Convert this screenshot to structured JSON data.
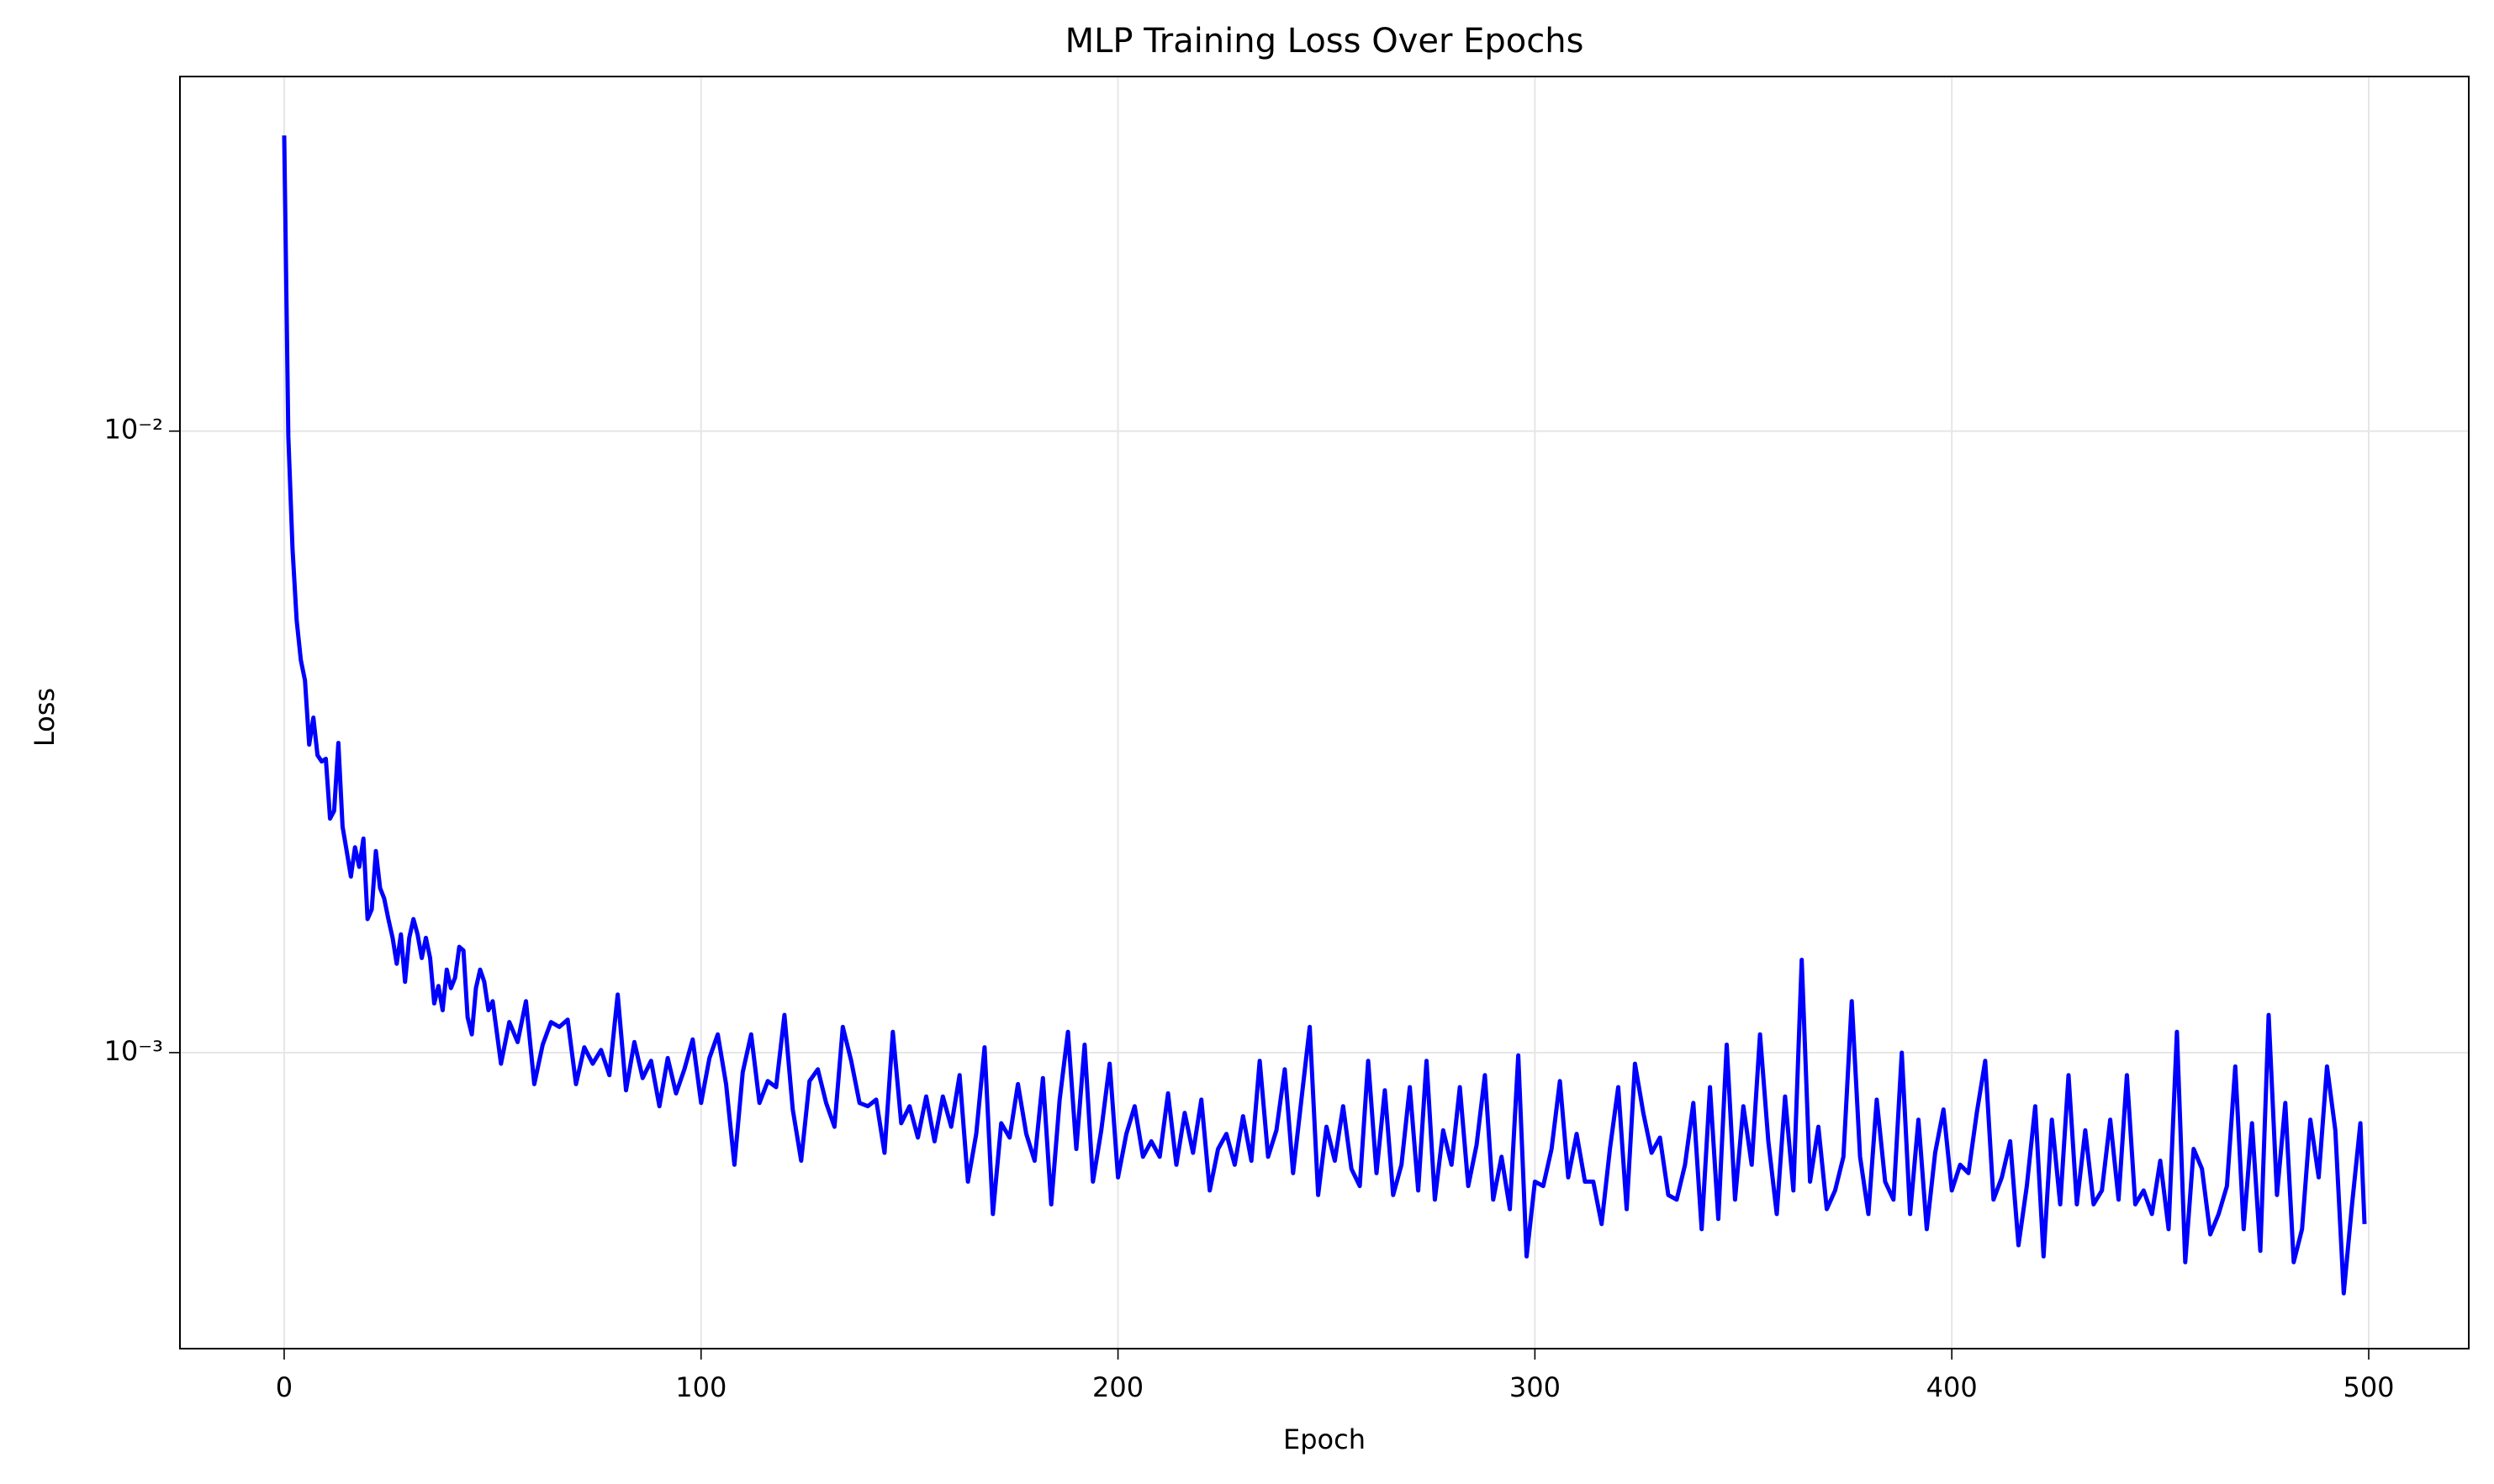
{
  "chart_data": {
    "type": "line",
    "title": "MLP Training Loss Over Epochs",
    "x_label": "Epoch",
    "y_label": "Loss",
    "color": "#0000ff",
    "grid": true,
    "y_scale": "log",
    "xlim": [
      -25,
      524
    ],
    "xticks": [
      0,
      100,
      200,
      300,
      400,
      500
    ],
    "ylim": [
      0.000334,
      0.0372
    ],
    "yticks": [
      {
        "value": 0.001,
        "label": "10⁻³"
      },
      {
        "value": 0.01,
        "label": "10⁻²"
      }
    ],
    "x": [
      0,
      1,
      2,
      3,
      4,
      5,
      6,
      7,
      8,
      9,
      10,
      11,
      12,
      13,
      14,
      15,
      16,
      17,
      18,
      19,
      20,
      21,
      22,
      23,
      24,
      25,
      26,
      27,
      28,
      29,
      30,
      31,
      32,
      33,
      34,
      35,
      36,
      37,
      38,
      39,
      40,
      41,
      42,
      43,
      44,
      45,
      46,
      47,
      48,
      49,
      50,
      52,
      54,
      56,
      58,
      60,
      62,
      64,
      66,
      68,
      70,
      72,
      74,
      76,
      78,
      80,
      82,
      84,
      86,
      88,
      90,
      92,
      94,
      96,
      98,
      100,
      102,
      104,
      106,
      108,
      110,
      112,
      114,
      116,
      118,
      120,
      122,
      124,
      126,
      128,
      130,
      132,
      134,
      136,
      138,
      140,
      142,
      144,
      146,
      148,
      150,
      152,
      154,
      156,
      158,
      160,
      162,
      164,
      166,
      168,
      170,
      172,
      174,
      176,
      178,
      180,
      182,
      184,
      186,
      188,
      190,
      192,
      194,
      196,
      198,
      200,
      202,
      204,
      206,
      208,
      210,
      212,
      214,
      216,
      218,
      220,
      222,
      224,
      226,
      228,
      230,
      232,
      234,
      236,
      238,
      240,
      242,
      244,
      246,
      248,
      250,
      252,
      254,
      256,
      258,
      260,
      262,
      264,
      266,
      268,
      270,
      272,
      274,
      276,
      278,
      280,
      282,
      284,
      286,
      288,
      290,
      292,
      294,
      296,
      298,
      300,
      302,
      304,
      306,
      308,
      310,
      312,
      314,
      316,
      318,
      320,
      322,
      324,
      326,
      328,
      330,
      332,
      334,
      336,
      338,
      340,
      342,
      344,
      346,
      348,
      350,
      352,
      354,
      356,
      358,
      360,
      362,
      364,
      366,
      368,
      370,
      372,
      374,
      376,
      378,
      380,
      382,
      384,
      386,
      388,
      390,
      392,
      394,
      396,
      398,
      400,
      402,
      404,
      406,
      408,
      410,
      412,
      414,
      416,
      418,
      420,
      422,
      424,
      426,
      428,
      430,
      432,
      434,
      436,
      438,
      440,
      442,
      444,
      446,
      448,
      450,
      452,
      454,
      456,
      458,
      460,
      462,
      464,
      466,
      468,
      470,
      472,
      474,
      476,
      478,
      480,
      482,
      484,
      486,
      488,
      490,
      492,
      494,
      496,
      498,
      499
    ],
    "values": [
      0.0299,
      0.0098,
      0.00646,
      0.00496,
      0.00428,
      0.00397,
      0.00313,
      0.00346,
      0.00301,
      0.00294,
      0.00297,
      0.00238,
      0.00245,
      0.00315,
      0.00231,
      0.00211,
      0.00192,
      0.00214,
      0.00199,
      0.00221,
      0.00164,
      0.0017,
      0.00211,
      0.00184,
      0.00177,
      0.00164,
      0.00153,
      0.00139,
      0.00155,
      0.0013,
      0.00153,
      0.00164,
      0.00155,
      0.00142,
      0.00153,
      0.00142,
      0.0012,
      0.00128,
      0.00117,
      0.00136,
      0.00127,
      0.00132,
      0.00148,
      0.00146,
      0.00114,
      0.00107,
      0.00127,
      0.00136,
      0.0013,
      0.00117,
      0.00121,
      0.00096,
      0.00112,
      0.00104,
      0.00121,
      0.00089,
      0.00103,
      0.00112,
      0.0011,
      0.00113,
      0.00089,
      0.00102,
      0.00096,
      0.00101,
      0.00092,
      0.00124,
      0.00087,
      0.00104,
      0.00091,
      0.00097,
      0.00082,
      0.00098,
      0.00086,
      0.00094,
      0.00105,
      0.00083,
      0.00098,
      0.00107,
      0.00089,
      0.00066,
      0.00093,
      0.00107,
      0.00083,
      0.0009,
      0.00088,
      0.00115,
      0.00081,
      0.00067,
      0.0009,
      0.00094,
      0.00083,
      0.00076,
      0.0011,
      0.00097,
      0.00083,
      0.00082,
      0.00084,
      0.00069,
      0.00108,
      0.00077,
      0.00082,
      0.00073,
      0.00085,
      0.00072,
      0.00085,
      0.00076,
      0.00092,
      0.00062,
      0.00074,
      0.00102,
      0.00055,
      0.00077,
      0.00073,
      0.00089,
      0.00074,
      0.00067,
      0.00091,
      0.00057,
      0.00084,
      0.00108,
      0.0007,
      0.00103,
      0.00062,
      0.00075,
      0.00096,
      0.00063,
      0.00074,
      0.00082,
      0.00068,
      0.00072,
      0.00068,
      0.00086,
      0.00066,
      0.0008,
      0.00069,
      0.00084,
      0.0006,
      0.0007,
      0.00074,
      0.00066,
      0.00079,
      0.00067,
      0.00097,
      0.00068,
      0.00075,
      0.00094,
      0.00064,
      0.00084,
      0.0011,
      0.00059,
      0.00076,
      0.00067,
      0.00082,
      0.00065,
      0.00061,
      0.00097,
      0.00064,
      0.00087,
      0.00059,
      0.00066,
      0.00088,
      0.0006,
      0.00097,
      0.00058,
      0.00075,
      0.00066,
      0.00088,
      0.00061,
      0.00071,
      0.00092,
      0.00058,
      0.00068,
      0.00056,
      0.00099,
      0.00047,
      0.00062,
      0.00061,
      0.0007,
      0.0009,
      0.00063,
      0.00074,
      0.00062,
      0.00062,
      0.00053,
      0.0007,
      0.00088,
      0.00056,
      0.00096,
      0.0008,
      0.00069,
      0.00073,
      0.00059,
      0.00058,
      0.00066,
      0.00083,
      0.00052,
      0.00088,
      0.00054,
      0.00103,
      0.00058,
      0.00082,
      0.00066,
      0.00107,
      0.00072,
      0.00055,
      0.00085,
      0.0006,
      0.00141,
      0.00062,
      0.00076,
      0.00056,
      0.0006,
      0.00068,
      0.00121,
      0.00068,
      0.00055,
      0.00084,
      0.00062,
      0.00058,
      0.001,
      0.00055,
      0.00078,
      0.00052,
      0.00069,
      0.00081,
      0.0006,
      0.00066,
      0.00064,
      0.0008,
      0.00097,
      0.00058,
      0.00063,
      0.00072,
      0.00049,
      0.00061,
      0.00082,
      0.00047,
      0.00078,
      0.00057,
      0.00092,
      0.00057,
      0.00075,
      0.00057,
      0.0006,
      0.00078,
      0.00058,
      0.00092,
      0.00057,
      0.0006,
      0.00055,
      0.00067,
      0.00052,
      0.00108,
      0.00046,
      0.0007,
      0.00065,
      0.00051,
      0.00055,
      0.00061,
      0.00095,
      0.00052,
      0.00077,
      0.00048,
      0.00115,
      0.00059,
      0.00083,
      0.00046,
      0.00052,
      0.00078,
      0.00063,
      0.00095,
      0.00075,
      0.00041,
      0.00057,
      0.00077,
      0.00053
    ]
  }
}
